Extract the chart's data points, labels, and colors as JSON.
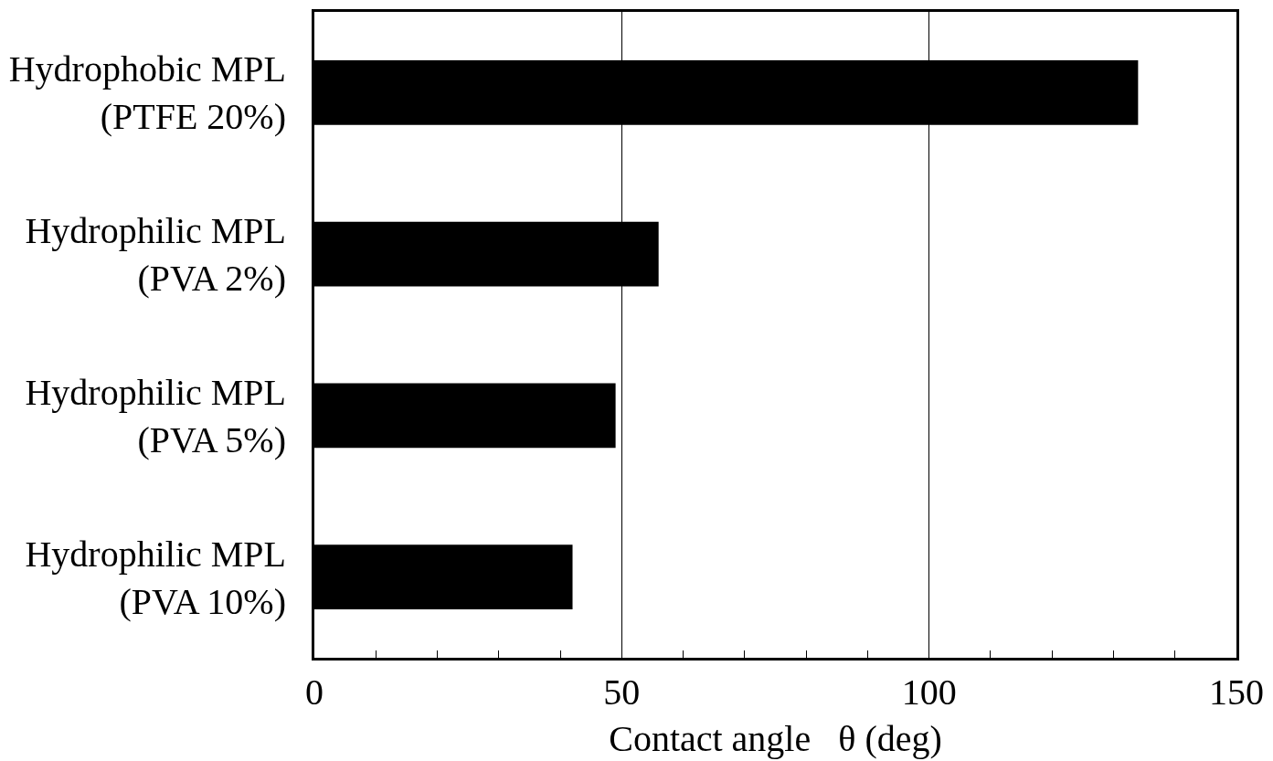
{
  "chart_data": {
    "type": "bar",
    "orientation": "horizontal",
    "xlabel": "Contact angle   θ (deg)",
    "categories": [
      "Hydrophobic MPL\n(PTFE 20%)",
      "Hydrophilic MPL\n(PVA 2%)",
      "Hydrophilic MPL\n(PVA 5%)",
      "Hydrophilic MPL\n(PVA 10%)"
    ],
    "values": [
      134,
      56,
      49,
      42
    ],
    "color": "#000000",
    "xlim": [
      0,
      150
    ],
    "xticks": [
      0,
      50,
      100,
      150,
      {
        "value": 10,
        "label": null
      },
      {
        "value": 20,
        "label": null
      },
      {
        "value": 30,
        "label": null
      },
      {
        "value": 40,
        "label": null
      },
      {
        "value": 60,
        "label": null
      },
      {
        "value": 70,
        "label": null
      },
      {
        "value": 80,
        "label": null
      },
      {
        "value": 90,
        "label": null
      },
      {
        "value": 110,
        "label": null
      },
      {
        "value": 120,
        "label": null
      },
      {
        "value": 130,
        "label": null
      },
      {
        "value": 140,
        "label": null
      }
    ],
    "grid": "x",
    "legend": false
  }
}
